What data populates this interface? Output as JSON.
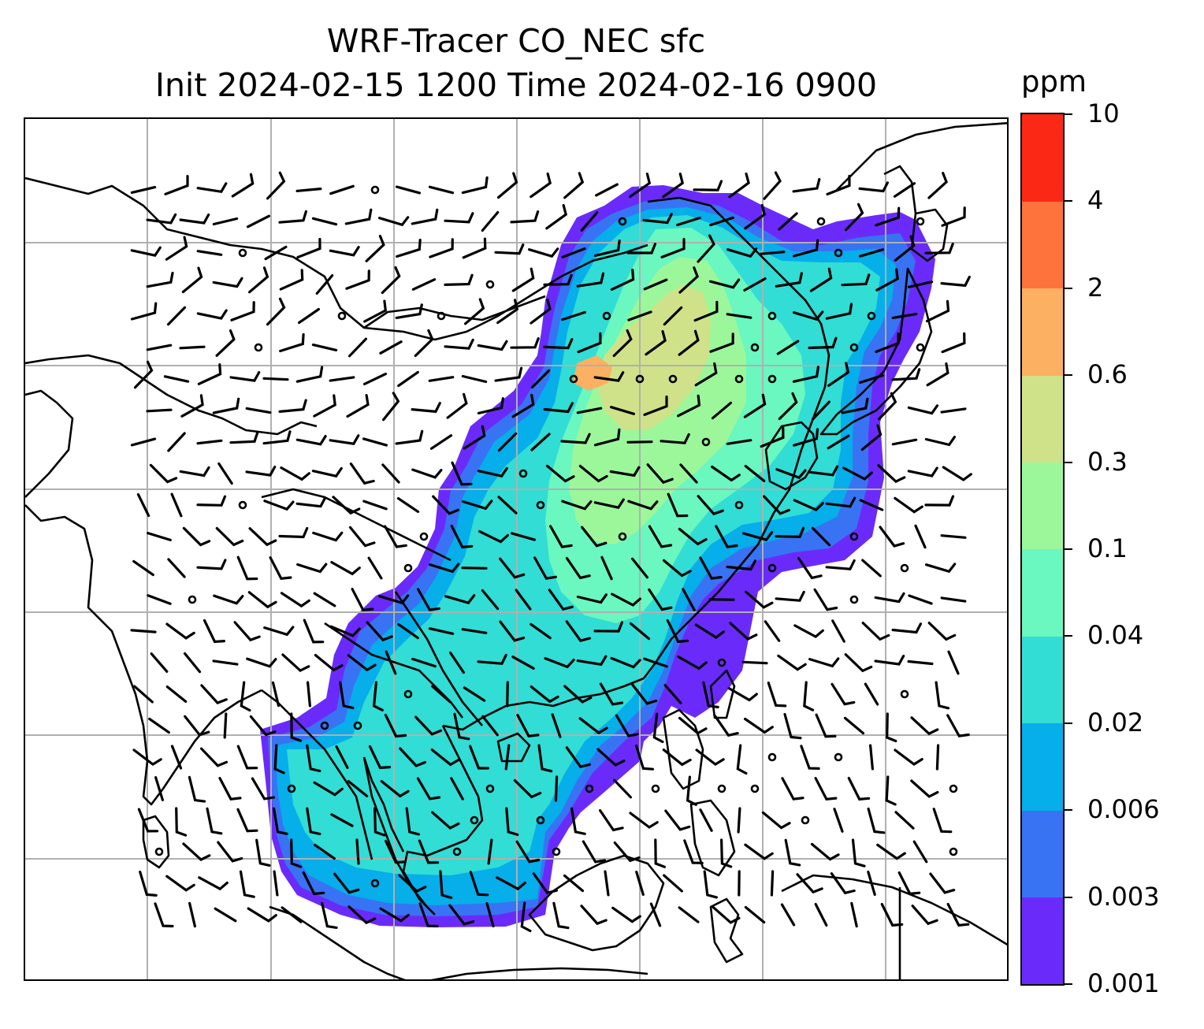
{
  "title": {
    "line1": "WRF-Tracer CO_NEC sfc",
    "line2": "Init 2024-02-15 1200 Time 2024-02-16 0900"
  },
  "colorbar": {
    "unit": "ppm",
    "tick_labels": [
      "0.001",
      "0.003",
      "0.006",
      "0.02",
      "0.04",
      "0.1",
      "0.3",
      "0.6",
      "2",
      "4",
      "10"
    ],
    "colors": [
      "#6a2bfa",
      "#3873f4",
      "#06aeea",
      "#31ddd4",
      "#6af7c0",
      "#9cf79a",
      "#cfe289",
      "#fcb061",
      "#fe733b",
      "#fc2816"
    ]
  },
  "colors": {
    "coastline": "#000000",
    "gridline": "#b0b0b0",
    "wind_barb": "#000000"
  },
  "map": {
    "projection": "Mercator",
    "field": "CO_NEC tracer concentration (filled contours)",
    "overlay": "surface wind barbs",
    "gridlines": true
  }
}
